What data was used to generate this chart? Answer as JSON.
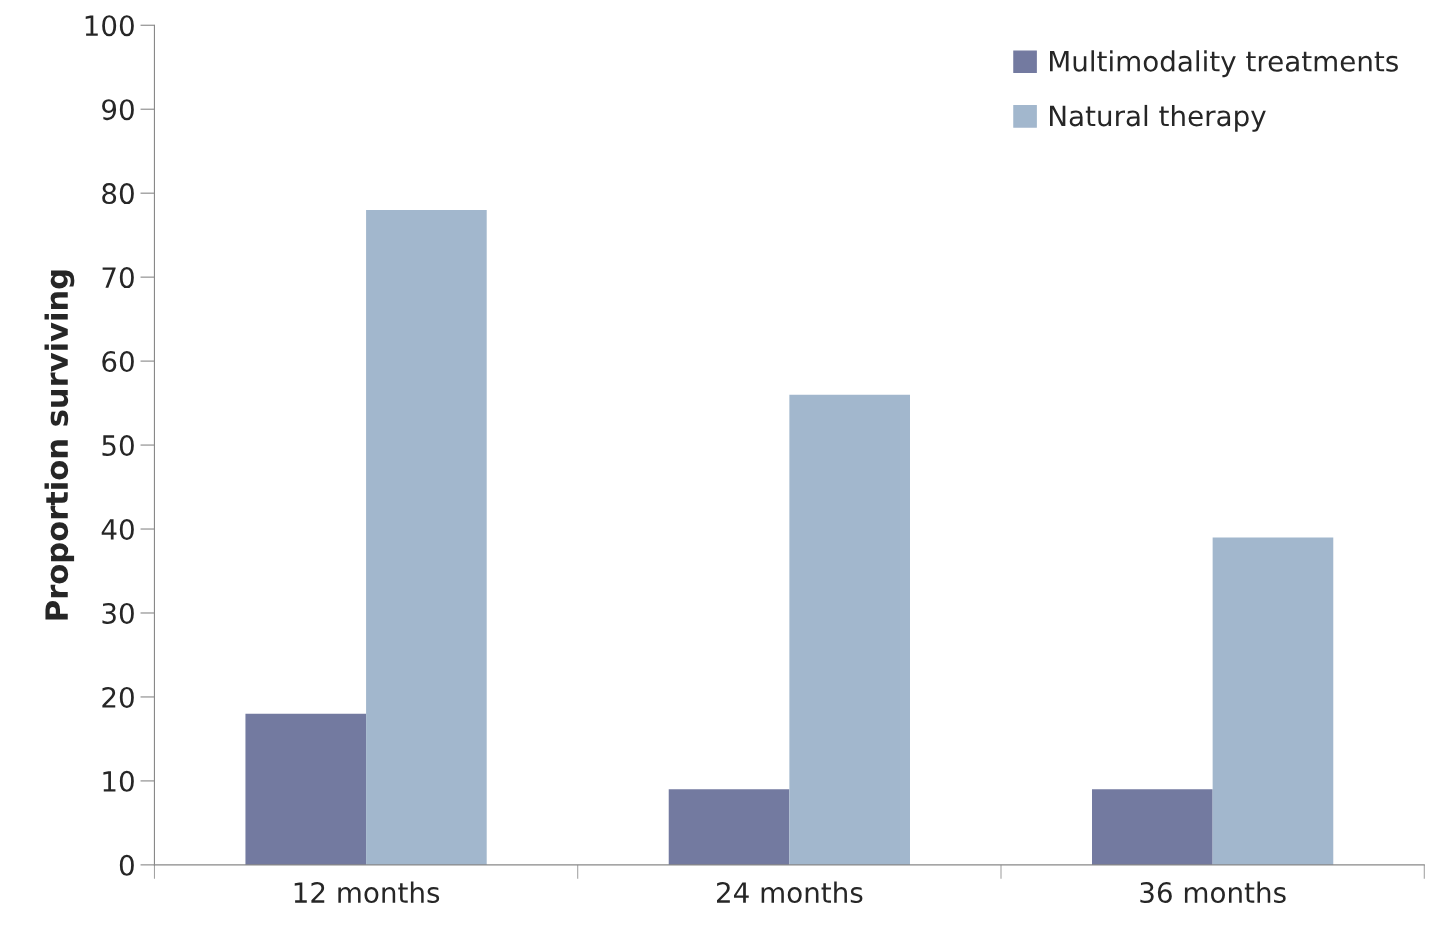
{
  "chart_data": {
    "type": "bar",
    "ylabel": "Proportion surviving",
    "categories": [
      "12 months",
      "24 months",
      "36 months"
    ],
    "series": [
      {
        "name": "Multimodality treatments",
        "color": "#737aa0",
        "values": [
          18,
          9,
          9
        ]
      },
      {
        "name": "Natural therapy",
        "color": "#a2b7cd",
        "values": [
          78,
          56,
          39
        ]
      }
    ],
    "ylim": [
      0,
      100
    ],
    "yticks": [
      0,
      10,
      20,
      30,
      40,
      50,
      60,
      70,
      80,
      90,
      100
    ],
    "grid": false,
    "legend": "top right"
  }
}
